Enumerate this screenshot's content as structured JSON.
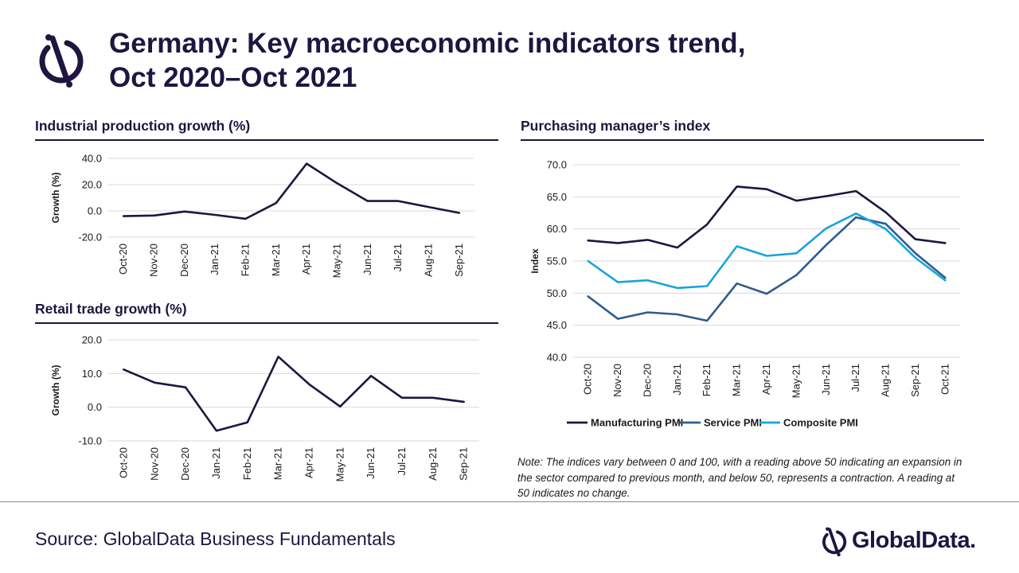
{
  "title_line1": "Germany: Key macroeconomic indicators trend,",
  "title_line2": "Oct 2020–Oct 2021",
  "colors": {
    "dark_navy": "#1f1540",
    "service_blue": "#2e5c8f",
    "composite_cyan": "#19a3dc",
    "grid": "#d9d9d9"
  },
  "industrial": {
    "section_title": "Industrial production growth (%)"
  },
  "retail": {
    "section_title": "Retail trade growth (%)"
  },
  "pmi": {
    "section_title": "Purchasing manager’s index"
  },
  "chart_data": [
    {
      "type": "line",
      "title": "Industrial production growth (%)",
      "ylabel": "Growth (%)",
      "xlabel": "",
      "categories": [
        "Oct-20",
        "Nov-20",
        "Dec-20",
        "Jan-21",
        "Feb-21",
        "Mar-21",
        "Apr-21",
        "May-21",
        "Jun-21",
        "Jul-21",
        "Aug-21",
        "Sep-21"
      ],
      "yticks": [
        "40.0",
        "20.0",
        "0.0",
        "-20.0"
      ],
      "ylim": [
        -20,
        40
      ],
      "grid": true,
      "series": [
        {
          "color": "#1f1540",
          "values": [
            -4.0,
            -3.5,
            -0.5,
            -3.0,
            -6.0,
            6.0,
            36.0,
            21.0,
            7.5,
            7.5,
            3.0,
            -1.5
          ]
        }
      ]
    },
    {
      "type": "line",
      "title": "Retail trade growth (%)",
      "ylabel": "Growth (%)",
      "xlabel": "",
      "categories": [
        "Oct-20",
        "Nov-20",
        "Dec-20",
        "Jan-21",
        "Feb-21",
        "Mar-21",
        "Apr-21",
        "May-21",
        "Jun-21",
        "Jul-21",
        "Aug-21",
        "Sep-21"
      ],
      "yticks": [
        "20.0",
        "10.0",
        "0.0",
        "-10.0"
      ],
      "ylim": [
        -10,
        20
      ],
      "grid": true,
      "series": [
        {
          "color": "#1f1540",
          "values": [
            11.2,
            7.3,
            5.9,
            -7.0,
            -4.5,
            15.0,
            6.8,
            0.2,
            9.3,
            2.8,
            2.8,
            1.6
          ]
        }
      ]
    },
    {
      "type": "line",
      "title": "Purchasing manager’s index",
      "ylabel": "Index",
      "xlabel": "",
      "categories": [
        "Oct-20",
        "Nov-20",
        "Dec-20",
        "Jan-21",
        "Feb-21",
        "Mar-21",
        "Apr-21",
        "May-21",
        "Jun-21",
        "Jul-21",
        "Aug-21",
        "Sep-21",
        "Oct-21"
      ],
      "yticks": [
        "70.0",
        "65.0",
        "60.0",
        "55.0",
        "50.0",
        "45.0",
        "40.0"
      ],
      "ylim": [
        40,
        70
      ],
      "grid": true,
      "legend": "bottom",
      "series": [
        {
          "name": "Manufacturing PMI",
          "color": "#1f1540",
          "values": [
            58.2,
            57.8,
            58.3,
            57.1,
            60.7,
            66.6,
            66.2,
            64.4,
            65.1,
            65.9,
            62.6,
            58.4,
            57.8
          ]
        },
        {
          "name": "Service PMI",
          "color": "#2e5c8f",
          "values": [
            49.5,
            46.0,
            47.0,
            46.7,
            45.7,
            51.5,
            49.9,
            52.8,
            57.5,
            61.8,
            60.8,
            56.2,
            52.4
          ]
        },
        {
          "name": "Composite PMI",
          "color": "#19a3dc",
          "values": [
            55.0,
            51.7,
            52.0,
            50.8,
            51.1,
            57.3,
            55.8,
            56.2,
            60.1,
            62.4,
            60.0,
            55.5,
            52.0
          ]
        }
      ]
    }
  ],
  "note": "Note: The indices vary between 0 and 100, with a reading above 50 indicating an expansion in the sector compared to previous month, and below 50, represents a contraction. A reading at 50 indicates no change.",
  "source": "Source: GlobalData Business Fundamentals",
  "brand": "GlobalData."
}
